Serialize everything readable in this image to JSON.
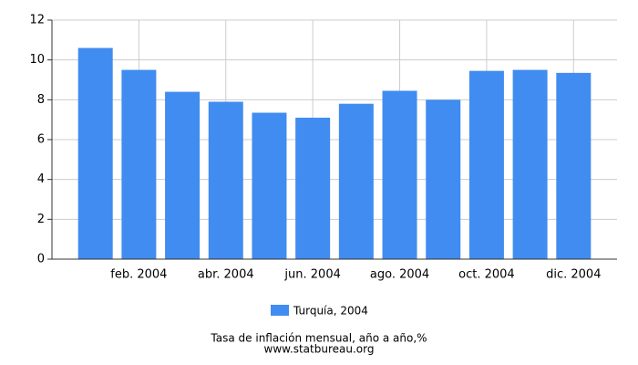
{
  "chart_data": {
    "type": "bar",
    "categories": [
      null,
      "feb. 2004",
      null,
      "abr. 2004",
      null,
      "jun. 2004",
      null,
      "ago. 2004",
      null,
      "oct. 2004",
      null,
      "dic. 2004"
    ],
    "series": [
      {
        "name": "Turquía, 2004",
        "color": "#418cf0",
        "values": [
          10.6,
          9.5,
          8.4,
          7.9,
          7.35,
          7.1,
          7.8,
          8.45,
          8.0,
          9.45,
          9.5,
          9.35
        ]
      }
    ],
    "ylim": [
      0,
      12
    ],
    "yticks": [
      0,
      2,
      4,
      6,
      8,
      10,
      12
    ],
    "grid": true,
    "caption": "Tasa de inflación mensual, año a año,%",
    "source": "www.statbureau.org"
  }
}
